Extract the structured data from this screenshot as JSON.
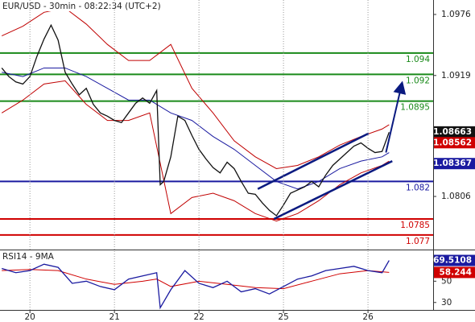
{
  "chart_data": [
    {
      "type": "line",
      "title": "EUR/USD - 30min - 08:22:34 (UTC+2)",
      "xlim": [
        -8.5,
        114.5
      ],
      "ylim": [
        1.07564,
        1.09895
      ],
      "yticks": [
        1.0976,
        1.0919,
        1.0863,
        1.0806
      ],
      "series": [
        {
          "color": "#c00000",
          "x": [
            -8,
            -2,
            4,
            10,
            16,
            22,
            28,
            34,
            40,
            46,
            52,
            58,
            64,
            70,
            76,
            82,
            88,
            94,
            100,
            102
          ],
          "values": [
            1.0956,
            1.0965,
            1.0978,
            1.0982,
            1.0967,
            1.0948,
            1.0933,
            1.0933,
            1.0948,
            1.0907,
            1.0884,
            1.0858,
            1.0843,
            1.0832,
            1.0835,
            1.0843,
            1.0854,
            1.0862,
            1.0869,
            1.0873
          ]
        },
        {
          "color": "#c00000",
          "x": [
            -8,
            -2,
            4,
            10,
            16,
            22,
            28,
            34,
            40,
            46,
            52,
            58,
            64,
            70,
            76,
            82,
            88,
            94,
            100,
            102
          ],
          "values": [
            1.0884,
            1.0896,
            1.0911,
            1.0914,
            1.0892,
            1.0877,
            1.0877,
            1.0884,
            1.079,
            1.0805,
            1.0809,
            1.0802,
            1.079,
            1.0783,
            1.079,
            1.0802,
            1.0817,
            1.0828,
            1.0835,
            1.0839
          ]
        },
        {
          "color": "#1a1aa0",
          "x": [
            -8,
            -2,
            4,
            10,
            16,
            22,
            28,
            34,
            40,
            46,
            52,
            58,
            64,
            70,
            76,
            82,
            88,
            94,
            100,
            102
          ],
          "values": [
            1.0922,
            1.0918,
            1.0926,
            1.0926,
            1.0918,
            1.0907,
            1.0896,
            1.0896,
            1.0884,
            1.0877,
            1.0862,
            1.085,
            1.0835,
            1.082,
            1.0813,
            1.082,
            1.0832,
            1.0839,
            1.0843,
            1.0847
          ]
        },
        {
          "color": "#111111",
          "x": [
            -8,
            -6,
            -4,
            -2,
            0,
            2,
            4,
            6,
            8,
            10,
            12,
            14,
            16,
            18,
            20,
            22,
            24,
            26,
            28,
            30,
            32,
            34,
            36,
            37,
            38,
            40,
            42,
            44,
            46,
            48,
            50,
            52,
            54,
            56,
            58,
            60,
            62,
            64,
            66,
            68,
            70,
            72,
            74,
            76,
            78,
            80,
            82,
            84,
            86,
            88,
            90,
            92,
            94,
            96,
            98,
            100,
            102
          ],
          "values": [
            1.0926,
            1.0918,
            1.0913,
            1.0911,
            1.0918,
            1.0937,
            1.0953,
            1.0966,
            1.0952,
            1.0922,
            1.0911,
            1.0901,
            1.0907,
            1.0892,
            1.0884,
            1.0881,
            1.0877,
            1.0875,
            1.0884,
            1.0893,
            1.0898,
            1.0893,
            1.0905,
            1.0817,
            1.082,
            1.0843,
            1.0881,
            1.0877,
            1.0863,
            1.085,
            1.0841,
            1.0833,
            1.0828,
            1.0838,
            1.0832,
            1.082,
            1.0809,
            1.0808,
            1.08,
            1.0793,
            1.0788,
            1.0798,
            1.0809,
            1.0812,
            1.0815,
            1.082,
            1.0815,
            1.0826,
            1.0835,
            1.0841,
            1.0847,
            1.0853,
            1.0856,
            1.0851,
            1.0847,
            1.0848,
            1.0866
          ]
        }
      ],
      "levels": [
        {
          "value": 1.094,
          "color": "#1a8a1a"
        },
        {
          "value": 1.092,
          "color": "#1a8a1a"
        },
        {
          "value": 1.0895,
          "color": "#1a8a1a"
        },
        {
          "value": 1.082,
          "color": "#1a1aa0"
        },
        {
          "value": 1.0785,
          "color": "#d00000"
        },
        {
          "value": 1.077,
          "color": "#d00000"
        }
      ],
      "trendlines": [
        {
          "x": [
            64.7,
            96.2
          ],
          "y": [
            1.0813,
            1.0865
          ],
          "color": "#0a1a80"
        },
        {
          "x": [
            69.3,
            102.9
          ],
          "y": [
            1.0785,
            1.0839
          ],
          "color": "#0a1a80"
        }
      ],
      "arrow": {
        "x": [
          101.1,
          105.6
        ],
        "y": [
          1.0847,
          1.0911
        ],
        "color": "#0a1a80"
      },
      "price_labels": [
        {
          "value": 1.08663,
          "color": "#111111"
        },
        {
          "value": 1.08562,
          "color": "#d00000"
        },
        {
          "value": 1.08367,
          "color": "#1a1aa0"
        }
      ]
    },
    {
      "type": "line",
      "title": "RSI14 - 9MA",
      "xlim": [
        -8.5,
        114.5
      ],
      "ylim": [
        23,
        79
      ],
      "xticks": [
        {
          "value": 0,
          "label": "20"
        },
        {
          "value": 24,
          "label": "21"
        },
        {
          "value": 48,
          "label": "22"
        },
        {
          "value": 72,
          "label": "25"
        },
        {
          "value": 96,
          "label": "26"
        }
      ],
      "yticks": [
        30,
        50
      ],
      "series": [
        {
          "color": "#d00000",
          "x": [
            -8,
            0,
            8,
            16,
            24,
            32,
            36,
            40,
            48,
            56,
            64,
            72,
            80,
            88,
            96,
            102
          ],
          "values": [
            60,
            61,
            60,
            52,
            47,
            50,
            52,
            45,
            50,
            47,
            44,
            43,
            50,
            57,
            60,
            58.244
          ]
        },
        {
          "color": "#1a1aa0",
          "x": [
            -8,
            -4,
            0,
            4,
            8,
            12,
            16,
            20,
            24,
            28,
            32,
            36,
            37,
            40,
            44,
            48,
            52,
            56,
            60,
            64,
            68,
            72,
            76,
            80,
            84,
            88,
            92,
            96,
            100,
            102
          ],
          "values": [
            62,
            58,
            60,
            66,
            63,
            48,
            50,
            45,
            42,
            52,
            55,
            58,
            25,
            42,
            60,
            48,
            44,
            50,
            40,
            43,
            38,
            45,
            52,
            55,
            60,
            62,
            64,
            60,
            58,
            69.5108
          ]
        }
      ]
    }
  ]
}
